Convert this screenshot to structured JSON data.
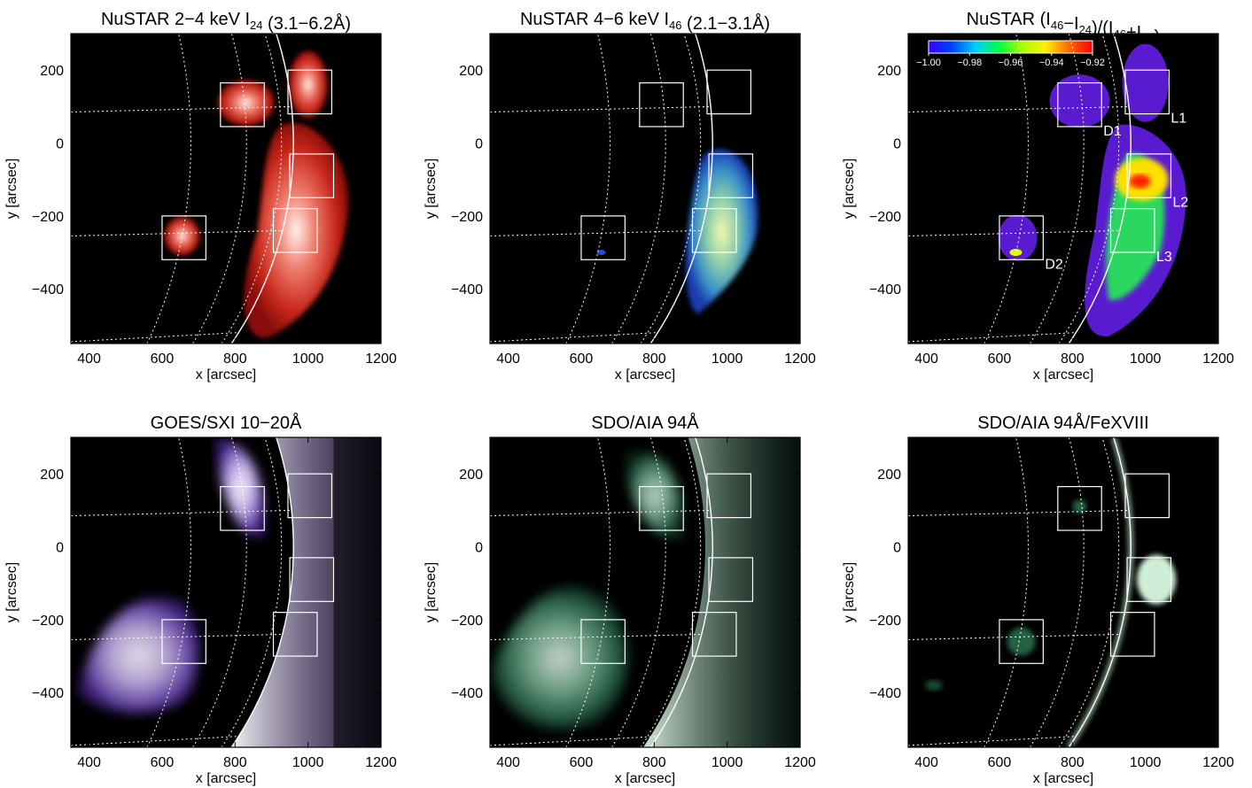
{
  "axes": {
    "xlabel": "x [arcsec]",
    "ylabel": "y [arcsec]",
    "xlim": [
      350,
      1200
    ],
    "ylim": [
      -550,
      300
    ],
    "xticks": [
      400,
      600,
      800,
      1000,
      1200
    ],
    "yticks": [
      200,
      0,
      -200,
      -400
    ]
  },
  "panels": [
    {
      "id": "nustar-24",
      "title_parts": [
        {
          "t": "NuSTAR 2−4 keV I"
        },
        {
          "t": "24",
          "sub": true
        },
        {
          "t": " (3.1−6.2Å)"
        }
      ],
      "colormap": "red",
      "image": "nustar_low"
    },
    {
      "id": "nustar-46",
      "title_parts": [
        {
          "t": "NuSTAR 4−6 keV I"
        },
        {
          "t": "46",
          "sub": true
        },
        {
          "t": " (2.1−3.1Å)"
        }
      ],
      "colormap": "blue-yellow",
      "image": "nustar_high"
    },
    {
      "id": "nustar-ratio",
      "title_parts": [
        {
          "t": "NuSTAR (I"
        },
        {
          "t": "46",
          "sub": true
        },
        {
          "t": "−I"
        },
        {
          "t": "24",
          "sub": true
        },
        {
          "t": ")/(I"
        },
        {
          "t": "46",
          "sub": true
        },
        {
          "t": "+I"
        },
        {
          "t": "24",
          "sub": true
        },
        {
          "t": ")"
        }
      ],
      "colormap": "rainbow",
      "image": "ratio",
      "colorbar": {
        "ticks": [
          "−1.00",
          "−0.98",
          "−0.96",
          "−0.94",
          "−0.92"
        ],
        "colors": [
          "#3300ff",
          "#0044ff",
          "#00ccff",
          "#00ff44",
          "#aaff00",
          "#ffee00",
          "#ff6600",
          "#ff0000"
        ]
      },
      "box_labels": [
        "D1",
        "L1",
        "L2",
        "D2",
        "L3"
      ]
    },
    {
      "id": "goes-sxi",
      "title_parts": [
        {
          "t": "GOES/SXI 10−20Å"
        }
      ],
      "colormap": "purple",
      "image": "sxi"
    },
    {
      "id": "aia-94",
      "title_parts": [
        {
          "t": "SDO/AIA 94Å"
        }
      ],
      "colormap": "green",
      "image": "aia94"
    },
    {
      "id": "aia-fexviii",
      "title_parts": [
        {
          "t": "SDO/AIA 94Å/FeXVIII"
        }
      ],
      "colormap": "green-faint",
      "image": "fexviii"
    }
  ],
  "regions": [
    {
      "name": "D1",
      "x": [
        760,
        880
      ],
      "y": [
        45,
        165
      ]
    },
    {
      "name": "L1",
      "x": [
        945,
        1065
      ],
      "y": [
        80,
        200
      ]
    },
    {
      "name": "L2",
      "x": [
        950,
        1070
      ],
      "y": [
        -150,
        -30
      ]
    },
    {
      "name": "D2",
      "x": [
        600,
        720
      ],
      "y": [
        -320,
        -200
      ]
    },
    {
      "name": "L3",
      "x": [
        905,
        1025
      ],
      "y": [
        -300,
        -180
      ]
    }
  ],
  "colors": {
    "background": "#000000",
    "limb": "#ffffff",
    "grid": "#ffffff",
    "boxes": "#ffffff"
  }
}
